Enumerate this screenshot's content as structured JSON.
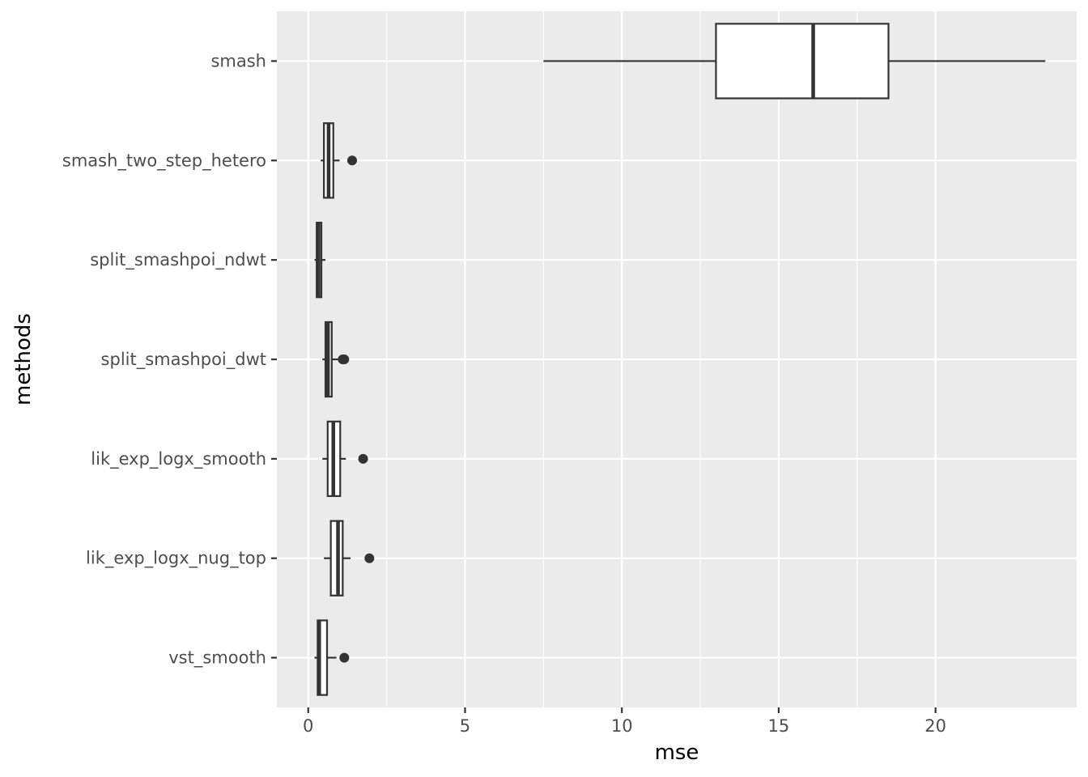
{
  "chart_data": {
    "type": "boxplot",
    "orientation": "horizontal",
    "xlabel": "mse",
    "ylabel": "methods",
    "xlim": [
      -1.0,
      24.5
    ],
    "x_ticks": [
      0,
      5,
      10,
      15,
      20
    ],
    "x_tick_labels": [
      "0",
      "5",
      "10",
      "15",
      "20"
    ],
    "grid": true,
    "legend": "none",
    "categories": [
      "smash",
      "smash_two_step_hetero",
      "split_smashpoi_ndwt",
      "split_smashpoi_dwt",
      "lik_exp_logx_smooth",
      "lik_exp_logx_nug_top",
      "vst_smooth"
    ],
    "boxes": [
      {
        "method": "smash",
        "whisker_low": 7.5,
        "q1": 13.0,
        "median": 16.1,
        "q3": 18.5,
        "whisker_high": 23.5,
        "outliers": []
      },
      {
        "method": "smash_two_step_hetero",
        "whisker_low": 0.4,
        "q1": 0.5,
        "median": 0.65,
        "q3": 0.8,
        "whisker_high": 1.0,
        "outliers": [
          1.4
        ]
      },
      {
        "method": "split_smashpoi_ndwt",
        "whisker_low": 0.2,
        "q1": 0.27,
        "median": 0.33,
        "q3": 0.42,
        "whisker_high": 0.55,
        "outliers": []
      },
      {
        "method": "split_smashpoi_dwt",
        "whisker_low": 0.45,
        "q1": 0.55,
        "median": 0.63,
        "q3": 0.75,
        "whisker_high": 1.0,
        "outliers": [
          1.1,
          1.15
        ]
      },
      {
        "method": "lik_exp_logx_smooth",
        "whisker_low": 0.45,
        "q1": 0.62,
        "median": 0.8,
        "q3": 1.02,
        "whisker_high": 1.2,
        "outliers": [
          1.75
        ]
      },
      {
        "method": "lik_exp_logx_nug_top",
        "whisker_low": 0.5,
        "q1": 0.72,
        "median": 0.95,
        "q3": 1.1,
        "whisker_high": 1.35,
        "outliers": [
          1.95
        ]
      },
      {
        "method": "vst_smooth",
        "whisker_low": 0.2,
        "q1": 0.3,
        "median": 0.35,
        "q3": 0.6,
        "whisker_high": 0.9,
        "outliers": [
          1.15
        ]
      }
    ],
    "colors": {
      "panel": "#ebebeb",
      "grid": "#ffffff",
      "box_fill": "#ffffff",
      "box_line": "#333333",
      "text": "#4d4d4d"
    }
  }
}
